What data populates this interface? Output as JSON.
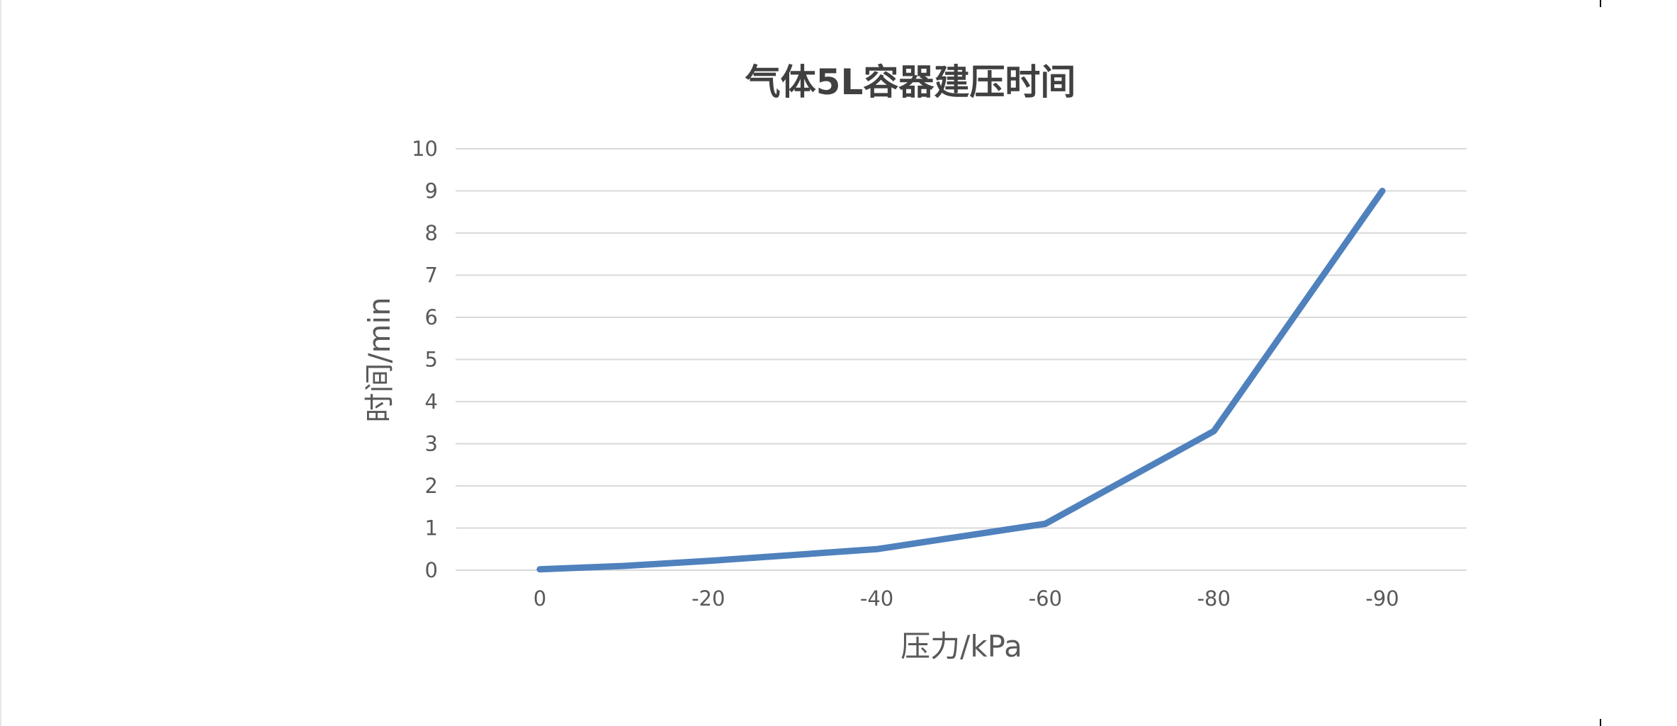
{
  "chart_data": {
    "type": "line",
    "title": "气体5L容器建压时间",
    "xlabel": "压力/kPa",
    "ylabel": "时间/min",
    "categories": [
      "0",
      "-20",
      "-40",
      "-60",
      "-80",
      "-90"
    ],
    "points": [
      {
        "x": 0,
        "y": 0.02
      },
      {
        "x": 0.5,
        "y": 0.1
      },
      {
        "x": 1,
        "y": 0.22
      },
      {
        "x": 2,
        "y": 0.5
      },
      {
        "x": 3,
        "y": 1.1
      },
      {
        "x": 4,
        "y": 3.3
      },
      {
        "x": 5,
        "y": 9.0
      }
    ],
    "series": [
      {
        "color": "#4f81bd"
      }
    ],
    "ylim": [
      0,
      10
    ],
    "yticks": [
      "0",
      "1",
      "2",
      "3",
      "4",
      "5",
      "6",
      "7",
      "8",
      "9",
      "10"
    ],
    "grid": true,
    "legend": "none"
  }
}
